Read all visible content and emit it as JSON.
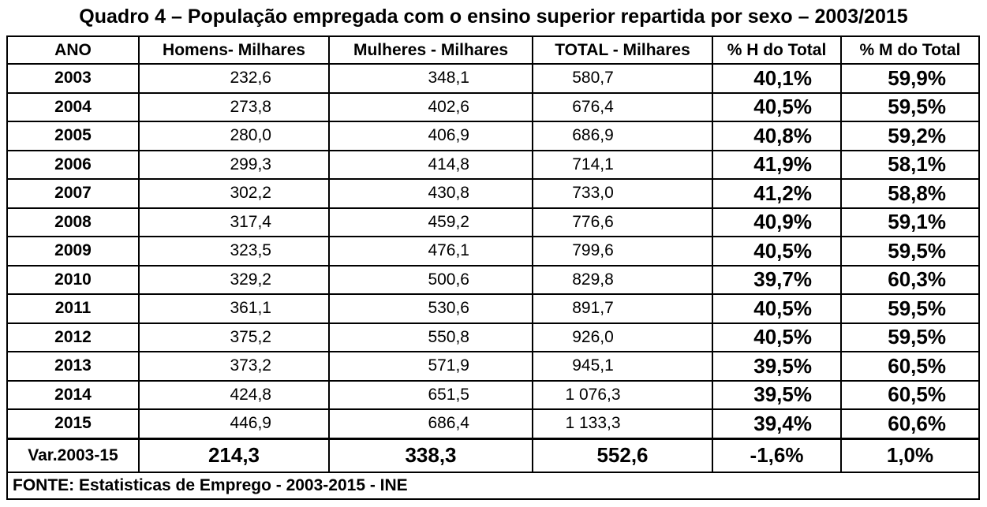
{
  "title": "Quadro 4 – População empregada com o ensino superior repartida por sexo – 2003/2015",
  "headers": [
    "ANO",
    "Homens- Milhares",
    "Mulheres - Milhares",
    "TOTAL - Milhares",
    "% H do Total",
    "% M do Total"
  ],
  "rows": [
    {
      "ano": "2003",
      "homens": "232,6",
      "mulheres": "348,1",
      "total": "580,7",
      "ph": "40,1%",
      "pm": "59,9%"
    },
    {
      "ano": "2004",
      "homens": "273,8",
      "mulheres": "402,6",
      "total": "676,4",
      "ph": "40,5%",
      "pm": "59,5%"
    },
    {
      "ano": "2005",
      "homens": "280,0",
      "mulheres": "406,9",
      "total": "686,9",
      "ph": "40,8%",
      "pm": "59,2%"
    },
    {
      "ano": "2006",
      "homens": "299,3",
      "mulheres": "414,8",
      "total": "714,1",
      "ph": "41,9%",
      "pm": "58,1%"
    },
    {
      "ano": "2007",
      "homens": "302,2",
      "mulheres": "430,8",
      "total": "733,0",
      "ph": "41,2%",
      "pm": "58,8%"
    },
    {
      "ano": "2008",
      "homens": "317,4",
      "mulheres": "459,2",
      "total": "776,6",
      "ph": "40,9%",
      "pm": "59,1%"
    },
    {
      "ano": "2009",
      "homens": "323,5",
      "mulheres": "476,1",
      "total": "799,6",
      "ph": "40,5%",
      "pm": "59,5%"
    },
    {
      "ano": "2010",
      "homens": "329,2",
      "mulheres": "500,6",
      "total": "829,8",
      "ph": "39,7%",
      "pm": "60,3%"
    },
    {
      "ano": "2011",
      "homens": "361,1",
      "mulheres": "530,6",
      "total": "891,7",
      "ph": "40,5%",
      "pm": "59,5%"
    },
    {
      "ano": "2012",
      "homens": "375,2",
      "mulheres": "550,8",
      "total": "926,0",
      "ph": "40,5%",
      "pm": "59,5%"
    },
    {
      "ano": "2013",
      "homens": "373,2",
      "mulheres": "571,9",
      "total": "945,1",
      "ph": "39,5%",
      "pm": "60,5%"
    },
    {
      "ano": "2014",
      "homens": "424,8",
      "mulheres": "651,5",
      "total": "1 076,3",
      "ph": "39,5%",
      "pm": "60,5%"
    },
    {
      "ano": "2015",
      "homens": "446,9",
      "mulheres": "686,4",
      "total": "1 133,3",
      "ph": "39,4%",
      "pm": "60,6%"
    }
  ],
  "variation": {
    "label": "Var.2003-15",
    "homens": "214,3",
    "mulheres": "338,3",
    "total": "552,6",
    "ph": "-1,6%",
    "pm": "1,0%"
  },
  "source": "FONTE: Estatisticas de Emprego - 2003-2015 - INE"
}
